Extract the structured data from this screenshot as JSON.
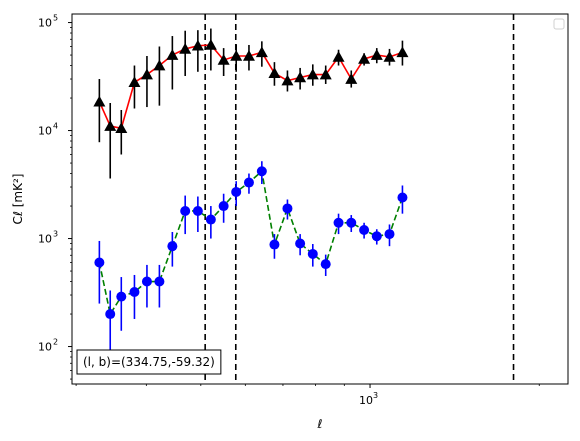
{
  "chart_data": {
    "type": "line",
    "xlabel": "ℓ",
    "ylabel": "Cℓ [mK²]",
    "xscale": "log",
    "yscale": "log",
    "xlim": [
      295,
      2250
    ],
    "ylim": [
      45,
      120000
    ],
    "x_ticks": [
      {
        "value": 1000,
        "label": "10"
      }
    ],
    "y_ticks": [
      {
        "value": 100,
        "label": "10"
      },
      {
        "value": 1000,
        "label": "10"
      },
      {
        "value": 10000,
        "label": "10"
      },
      {
        "value": 100000,
        "label": "10"
      }
    ],
    "x_tick_sup": "3",
    "y_tick_sups": [
      "2",
      "3",
      "4",
      "5"
    ],
    "vertical_lines": [
      509,
      577,
      1800
    ],
    "legend": "top-right",
    "annotation": "(l, b)=(334.75,-59.32)",
    "series": [
      {
        "marker": "triangle",
        "line_color": "#ff0000",
        "line_style": "solid",
        "marker_color": "#000000",
        "points": [
          {
            "x": 330,
            "y": 18500,
            "lo": 7800,
            "hi": 30000
          },
          {
            "x": 345,
            "y": 11000,
            "lo": 3600,
            "hi": 18000
          },
          {
            "x": 361,
            "y": 10500,
            "lo": 6000,
            "hi": 15500
          },
          {
            "x": 381,
            "y": 28000,
            "lo": 16000,
            "hi": 40000
          },
          {
            "x": 401,
            "y": 33000,
            "lo": 16500,
            "hi": 49000
          },
          {
            "x": 422,
            "y": 40000,
            "lo": 17000,
            "hi": 60000
          },
          {
            "x": 445,
            "y": 50000,
            "lo": 24000,
            "hi": 75000
          },
          {
            "x": 469,
            "y": 57000,
            "lo": 32000,
            "hi": 84000
          },
          {
            "x": 494,
            "y": 61000,
            "lo": 35000,
            "hi": 85000
          },
          {
            "x": 521,
            "y": 62000,
            "lo": 36000,
            "hi": 88000
          },
          {
            "x": 549,
            "y": 45000,
            "lo": 32000,
            "hi": 58000
          },
          {
            "x": 578,
            "y": 49000,
            "lo": 35000,
            "hi": 63000
          },
          {
            "x": 609,
            "y": 49000,
            "lo": 36000,
            "hi": 62000
          },
          {
            "x": 642,
            "y": 53000,
            "lo": 39000,
            "hi": 67000
          },
          {
            "x": 676,
            "y": 34000,
            "lo": 26000,
            "hi": 43000
          },
          {
            "x": 713,
            "y": 29000,
            "lo": 23000,
            "hi": 36000
          },
          {
            "x": 751,
            "y": 31000,
            "lo": 24000,
            "hi": 38000
          },
          {
            "x": 791,
            "y": 33000,
            "lo": 26000,
            "hi": 41000
          },
          {
            "x": 834,
            "y": 33000,
            "lo": 27000,
            "hi": 40000
          },
          {
            "x": 879,
            "y": 48000,
            "lo": 40000,
            "hi": 56000
          },
          {
            "x": 926,
            "y": 30000,
            "lo": 25000,
            "hi": 36000
          },
          {
            "x": 976,
            "y": 46000,
            "lo": 40000,
            "hi": 52000
          },
          {
            "x": 1028,
            "y": 50000,
            "lo": 42000,
            "hi": 58000
          },
          {
            "x": 1083,
            "y": 48000,
            "lo": 40000,
            "hi": 57000
          },
          {
            "x": 1142,
            "y": 53000,
            "lo": 40000,
            "hi": 68000
          }
        ]
      },
      {
        "marker": "circle",
        "line_color": "#008000",
        "line_style": "dashed",
        "marker_color": "#0000ff",
        "points": [
          {
            "x": 330,
            "y": 600,
            "lo": 250,
            "hi": 950
          },
          {
            "x": 345,
            "y": 200,
            "lo": 70,
            "hi": 330
          },
          {
            "x": 361,
            "y": 290,
            "lo": 140,
            "hi": 440
          },
          {
            "x": 381,
            "y": 320,
            "lo": 180,
            "hi": 460
          },
          {
            "x": 401,
            "y": 400,
            "lo": 230,
            "hi": 570
          },
          {
            "x": 422,
            "y": 400,
            "lo": 230,
            "hi": 570
          },
          {
            "x": 445,
            "y": 850,
            "lo": 550,
            "hi": 1150
          },
          {
            "x": 469,
            "y": 1800,
            "lo": 1100,
            "hi": 2500
          },
          {
            "x": 494,
            "y": 1800,
            "lo": 1150,
            "hi": 2450
          },
          {
            "x": 521,
            "y": 1500,
            "lo": 1000,
            "hi": 2000
          },
          {
            "x": 549,
            "y": 2000,
            "lo": 1400,
            "hi": 2600
          },
          {
            "x": 578,
            "y": 2700,
            "lo": 2000,
            "hi": 3400
          },
          {
            "x": 609,
            "y": 3300,
            "lo": 2600,
            "hi": 4000
          },
          {
            "x": 642,
            "y": 4200,
            "lo": 3200,
            "hi": 5200
          },
          {
            "x": 676,
            "y": 880,
            "lo": 650,
            "hi": 1100
          },
          {
            "x": 713,
            "y": 1900,
            "lo": 1500,
            "hi": 2300
          },
          {
            "x": 751,
            "y": 900,
            "lo": 700,
            "hi": 1100
          },
          {
            "x": 791,
            "y": 720,
            "lo": 550,
            "hi": 890
          },
          {
            "x": 834,
            "y": 580,
            "lo": 450,
            "hi": 710
          },
          {
            "x": 879,
            "y": 1400,
            "lo": 1100,
            "hi": 1700
          },
          {
            "x": 926,
            "y": 1400,
            "lo": 1150,
            "hi": 1650
          },
          {
            "x": 976,
            "y": 1200,
            "lo": 1000,
            "hi": 1400
          },
          {
            "x": 1028,
            "y": 1050,
            "lo": 880,
            "hi": 1220
          },
          {
            "x": 1083,
            "y": 1100,
            "lo": 850,
            "hi": 1350
          },
          {
            "x": 1142,
            "y": 2400,
            "lo": 1700,
            "hi": 3100
          }
        ]
      }
    ]
  }
}
